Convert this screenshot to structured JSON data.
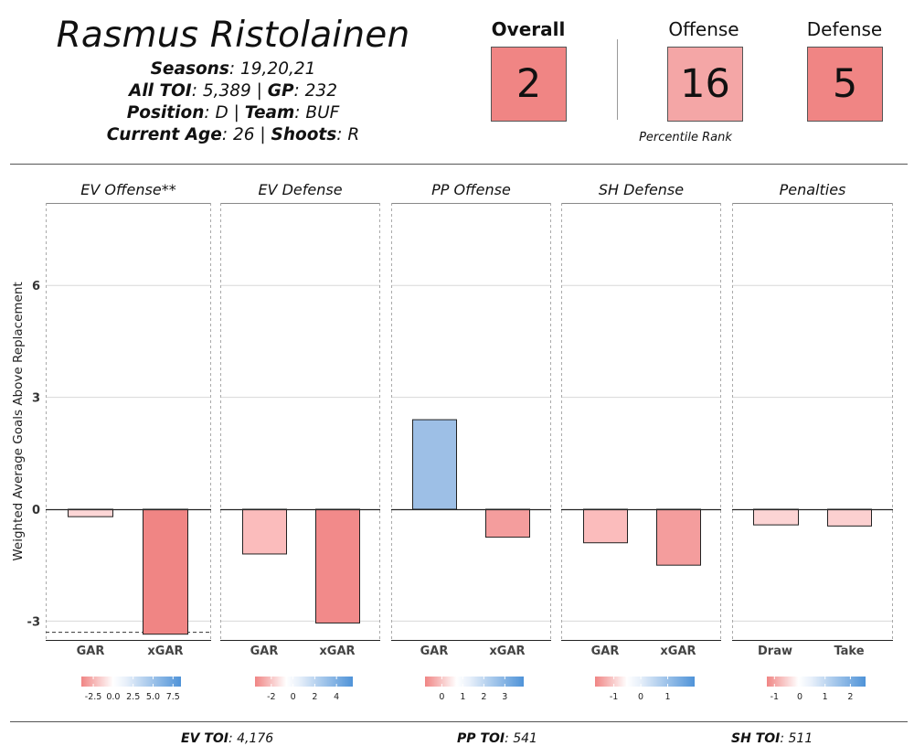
{
  "header": {
    "player_name": "Rasmus Ristolainen",
    "seasons_label": "Seasons",
    "seasons_value": "19,20,21",
    "toi_label": "All TOI",
    "toi_value": "5,389",
    "gp_label": "GP",
    "gp_value": "232",
    "position_label": "Position",
    "position_value": "D",
    "team_label": "Team",
    "team_value": "BUF",
    "age_label": "Current  Age",
    "age_value": "26",
    "shoots_label": "Shoots",
    "shoots_value": "R"
  },
  "ranks": {
    "overall_label": "Overall",
    "overall_value": "2",
    "overall_color": "#f08584",
    "offense_label": "Offense",
    "offense_value": "16",
    "offense_color": "#f4a6a6",
    "defense_label": "Defense",
    "defense_value": "5",
    "defense_color": "#f08584",
    "percentile_label": "Percentile Rank"
  },
  "footer": {
    "ev_toi_label": "EV TOI",
    "ev_toi_value": "4,176",
    "pp_toi_label": "PP TOI",
    "pp_toi_value": "541",
    "sh_toi_label": "SH TOI",
    "sh_toi_value": "511"
  },
  "chart_data": {
    "type": "bar",
    "ylabel": "Weighted Average Goals Above Replacement",
    "ylim": [
      -3.5,
      8.2
    ],
    "yticks": [
      -3,
      0,
      3,
      6
    ],
    "grid": true,
    "reference_line": -3.3,
    "panels": [
      {
        "title": "EV Offense**",
        "categories": [
          "GAR",
          "xGAR"
        ],
        "values": [
          -0.2,
          -3.35
        ],
        "bar_colors": [
          "#fcd6d6",
          "#f08584"
        ],
        "colorbar": {
          "ticks": [
            "-2.5",
            "0.0",
            "2.5",
            "5.0",
            "7.5"
          ]
        }
      },
      {
        "title": "EV Defense",
        "categories": [
          "GAR",
          "xGAR"
        ],
        "values": [
          -1.2,
          -3.05
        ],
        "bar_colors": [
          "#fbbcbc",
          "#f28a8a"
        ],
        "colorbar": {
          "ticks": [
            "-2",
            "0",
            "2",
            "4"
          ]
        }
      },
      {
        "title": "PP Offense",
        "categories": [
          "GAR",
          "xGAR"
        ],
        "values": [
          2.4,
          -0.75
        ],
        "bar_colors": [
          "#9dbfe6",
          "#f49d9d"
        ],
        "colorbar": {
          "ticks": [
            "0",
            "1",
            "2",
            "3"
          ]
        }
      },
      {
        "title": "SH Defense",
        "categories": [
          "GAR",
          "xGAR"
        ],
        "values": [
          -0.9,
          -1.5
        ],
        "bar_colors": [
          "#fbbcbc",
          "#f49d9d"
        ],
        "colorbar": {
          "ticks": [
            "-1",
            "0",
            "1"
          ]
        }
      },
      {
        "title": "Penalties",
        "categories": [
          "Draw",
          "Take"
        ],
        "values": [
          -0.42,
          -0.45
        ],
        "bar_colors": [
          "#fcd4d4",
          "#fcd0d0"
        ],
        "colorbar": {
          "ticks": [
            "-1",
            "0",
            "1",
            "2"
          ]
        }
      }
    ]
  }
}
